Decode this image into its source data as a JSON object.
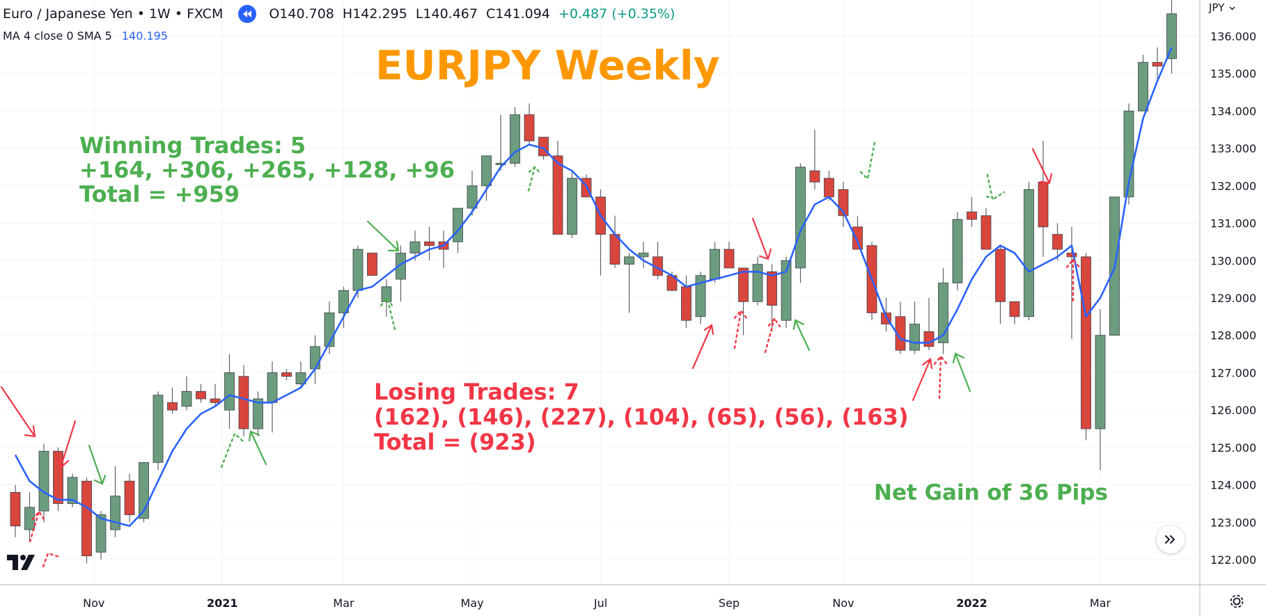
{
  "header": {
    "title": "Euro / Japanese Yen • 1W • FXCM",
    "ohlc": {
      "open": "O140.708",
      "high": "H142.295",
      "low": "L140.467",
      "close": "C141.094",
      "change": "+0.487 (+0.35%)"
    },
    "ma_label": "MA 4 close 0 SMA 5",
    "ma_value": "140.195",
    "currency_button": "JPY"
  },
  "annotations": {
    "title": "EURJPY Weekly",
    "win_line1": "Winning Trades: 5",
    "win_line2": "+164, +306, +265, +128, +96",
    "win_line3": "Total = +959",
    "lose_line1": "Losing Trades: 7",
    "lose_line2": "(162), (146), (227), (104), (65), (56), (163)",
    "lose_line3": "Total = (923)",
    "net": "Net Gain of 36 Pips"
  },
  "colors": {
    "up": "#6b9c7e",
    "down": "#d9463e",
    "ma": "#2962ff",
    "win": "#4caf50",
    "lose": "#f23645",
    "title": "#ff9800"
  },
  "icons": {
    "rewind": "rewind-icon",
    "scroll": "chevron-double-right-icon",
    "settings": "gear-icon",
    "logo": "tradingview-logo-icon"
  },
  "chart_data": {
    "type": "candlestick",
    "y_axis": {
      "min": 121.9,
      "max": 136.5,
      "side": "right",
      "ticks": [
        "122.000",
        "123.000",
        "124.000",
        "125.000",
        "126.000",
        "127.000",
        "128.000",
        "129.000",
        "130.000",
        "131.000",
        "132.000",
        "133.000",
        "134.000",
        "135.000",
        "136.000"
      ]
    },
    "x_axis": {
      "labels": [
        {
          "text": "Nov",
          "index": 5.5
        },
        {
          "text": "2021",
          "index": 14.5
        },
        {
          "text": "Mar",
          "index": 23
        },
        {
          "text": "May",
          "index": 32
        },
        {
          "text": "Jul",
          "index": 41
        },
        {
          "text": "Sep",
          "index": 50
        },
        {
          "text": "Nov",
          "index": 58
        },
        {
          "text": "2022",
          "index": 67
        },
        {
          "text": "Mar",
          "index": 76
        }
      ]
    },
    "candles": [
      {
        "o": 123.8,
        "h": 124.0,
        "l": 122.6,
        "c": 122.9
      },
      {
        "o": 122.8,
        "h": 123.8,
        "l": 122.5,
        "c": 123.4
      },
      {
        "o": 123.3,
        "h": 125.1,
        "l": 123.0,
        "c": 124.9
      },
      {
        "o": 124.9,
        "h": 125.0,
        "l": 123.3,
        "c": 123.5
      },
      {
        "o": 123.5,
        "h": 124.3,
        "l": 123.4,
        "c": 124.2
      },
      {
        "o": 124.1,
        "h": 124.2,
        "l": 121.9,
        "c": 122.1
      },
      {
        "o": 122.2,
        "h": 123.3,
        "l": 122.0,
        "c": 123.2
      },
      {
        "o": 122.8,
        "h": 124.5,
        "l": 122.6,
        "c": 123.7
      },
      {
        "o": 124.1,
        "h": 124.3,
        "l": 123.0,
        "c": 123.2
      },
      {
        "o": 123.1,
        "h": 124.6,
        "l": 123.0,
        "c": 124.6
      },
      {
        "o": 124.6,
        "h": 126.5,
        "l": 124.4,
        "c": 126.4
      },
      {
        "o": 126.2,
        "h": 126.6,
        "l": 125.9,
        "c": 126.0
      },
      {
        "o": 126.1,
        "h": 126.9,
        "l": 126.0,
        "c": 126.5
      },
      {
        "o": 126.5,
        "h": 126.7,
        "l": 126.2,
        "c": 126.3
      },
      {
        "o": 126.3,
        "h": 126.7,
        "l": 126.1,
        "c": 126.2
      },
      {
        "o": 126.0,
        "h": 127.5,
        "l": 125.5,
        "c": 127.0
      },
      {
        "o": 126.9,
        "h": 127.2,
        "l": 125.3,
        "c": 125.5
      },
      {
        "o": 125.5,
        "h": 126.5,
        "l": 125.3,
        "c": 126.3
      },
      {
        "o": 126.2,
        "h": 127.3,
        "l": 125.4,
        "c": 127.0
      },
      {
        "o": 127.0,
        "h": 127.1,
        "l": 126.8,
        "c": 126.9
      },
      {
        "o": 126.7,
        "h": 127.3,
        "l": 126.6,
        "c": 127.0
      },
      {
        "o": 127.1,
        "h": 128.0,
        "l": 126.7,
        "c": 127.7
      },
      {
        "o": 127.7,
        "h": 128.9,
        "l": 127.5,
        "c": 128.6
      },
      {
        "o": 128.6,
        "h": 129.3,
        "l": 128.2,
        "c": 129.2
      },
      {
        "o": 129.2,
        "h": 130.4,
        "l": 129.0,
        "c": 130.3
      },
      {
        "o": 130.2,
        "h": 130.2,
        "l": 129.6,
        "c": 129.6
      },
      {
        "o": 128.9,
        "h": 129.5,
        "l": 128.5,
        "c": 129.3
      },
      {
        "o": 129.5,
        "h": 130.4,
        "l": 128.9,
        "c": 130.2
      },
      {
        "o": 130.2,
        "h": 130.8,
        "l": 130.0,
        "c": 130.5
      },
      {
        "o": 130.5,
        "h": 130.9,
        "l": 130.0,
        "c": 130.4
      },
      {
        "o": 130.5,
        "h": 130.8,
        "l": 129.8,
        "c": 130.3
      },
      {
        "o": 130.5,
        "h": 131.3,
        "l": 130.2,
        "c": 131.4
      },
      {
        "o": 131.4,
        "h": 132.4,
        "l": 131.2,
        "c": 132.0
      },
      {
        "o": 132.0,
        "h": 132.7,
        "l": 131.6,
        "c": 132.8
      },
      {
        "o": 132.6,
        "h": 133.9,
        "l": 132.4,
        "c": 132.6
      },
      {
        "o": 132.6,
        "h": 134.1,
        "l": 132.5,
        "c": 133.9
      },
      {
        "o": 133.9,
        "h": 134.2,
        "l": 133.1,
        "c": 133.2
      },
      {
        "o": 133.3,
        "h": 133.3,
        "l": 132.7,
        "c": 132.8
      },
      {
        "o": 132.8,
        "h": 133.2,
        "l": 130.7,
        "c": 130.7
      },
      {
        "o": 130.7,
        "h": 132.4,
        "l": 130.6,
        "c": 132.2
      },
      {
        "o": 132.2,
        "h": 132.3,
        "l": 131.7,
        "c": 131.7
      },
      {
        "o": 131.7,
        "h": 131.9,
        "l": 129.6,
        "c": 130.7
      },
      {
        "o": 130.7,
        "h": 131.2,
        "l": 129.8,
        "c": 129.9
      },
      {
        "o": 129.9,
        "h": 130.2,
        "l": 128.6,
        "c": 130.1
      },
      {
        "o": 130.1,
        "h": 130.5,
        "l": 129.8,
        "c": 130.2
      },
      {
        "o": 130.1,
        "h": 130.5,
        "l": 129.5,
        "c": 129.6
      },
      {
        "o": 129.6,
        "h": 129.7,
        "l": 129.2,
        "c": 129.2
      },
      {
        "o": 129.3,
        "h": 129.6,
        "l": 128.2,
        "c": 128.4
      },
      {
        "o": 128.5,
        "h": 129.7,
        "l": 128.3,
        "c": 129.6
      },
      {
        "o": 129.5,
        "h": 130.5,
        "l": 129.4,
        "c": 130.3
      },
      {
        "o": 130.3,
        "h": 130.5,
        "l": 129.8,
        "c": 129.8
      },
      {
        "o": 129.8,
        "h": 129.8,
        "l": 128.0,
        "c": 128.9
      },
      {
        "o": 128.9,
        "h": 130.1,
        "l": 128.8,
        "c": 129.9
      },
      {
        "o": 129.7,
        "h": 129.9,
        "l": 128.1,
        "c": 128.8
      },
      {
        "o": 128.4,
        "h": 130.1,
        "l": 128.2,
        "c": 130.0
      },
      {
        "o": 129.8,
        "h": 132.6,
        "l": 129.4,
        "c": 132.5
      },
      {
        "o": 132.4,
        "h": 133.5,
        "l": 131.9,
        "c": 132.1
      },
      {
        "o": 132.2,
        "h": 132.4,
        "l": 131.6,
        "c": 131.7
      },
      {
        "o": 131.9,
        "h": 132.1,
        "l": 130.9,
        "c": 131.2
      },
      {
        "o": 130.9,
        "h": 131.2,
        "l": 130.3,
        "c": 130.3
      },
      {
        "o": 130.4,
        "h": 130.5,
        "l": 128.4,
        "c": 128.6
      },
      {
        "o": 128.6,
        "h": 129.0,
        "l": 128.1,
        "c": 128.3
      },
      {
        "o": 128.5,
        "h": 128.9,
        "l": 127.5,
        "c": 127.6
      },
      {
        "o": 127.6,
        "h": 128.9,
        "l": 127.5,
        "c": 128.3
      },
      {
        "o": 128.1,
        "h": 129.0,
        "l": 127.6,
        "c": 127.7
      },
      {
        "o": 127.8,
        "h": 129.8,
        "l": 127.5,
        "c": 129.4
      },
      {
        "o": 129.4,
        "h": 131.3,
        "l": 129.2,
        "c": 131.1
      },
      {
        "o": 131.3,
        "h": 131.7,
        "l": 130.9,
        "c": 131.1
      },
      {
        "o": 131.2,
        "h": 131.4,
        "l": 130.3,
        "c": 130.3
      },
      {
        "o": 130.3,
        "h": 130.4,
        "l": 128.3,
        "c": 128.9
      },
      {
        "o": 128.9,
        "h": 128.9,
        "l": 128.3,
        "c": 128.5
      },
      {
        "o": 128.5,
        "h": 132.1,
        "l": 128.4,
        "c": 131.9
      },
      {
        "o": 132.1,
        "h": 133.2,
        "l": 130.1,
        "c": 130.9
      },
      {
        "o": 130.7,
        "h": 131.0,
        "l": 130.0,
        "c": 130.3
      },
      {
        "o": 130.2,
        "h": 130.9,
        "l": 127.9,
        "c": 130.1
      },
      {
        "o": 130.1,
        "h": 130.2,
        "l": 125.2,
        "c": 125.5
      },
      {
        "o": 125.5,
        "h": 128.7,
        "l": 124.4,
        "c": 128.0
      },
      {
        "o": 128.0,
        "h": 131.7,
        "l": 128.0,
        "c": 131.7
      },
      {
        "o": 131.7,
        "h": 134.2,
        "l": 131.5,
        "c": 134.0
      },
      {
        "o": 134.0,
        "h": 135.5,
        "l": 134.0,
        "c": 135.3
      },
      {
        "o": 135.3,
        "h": 135.7,
        "l": 134.8,
        "c": 135.2
      },
      {
        "o": 135.4,
        "h": 137.0,
        "l": 135.0,
        "c": 136.6
      }
    ],
    "ma": [
      124.8,
      124.1,
      123.8,
      123.6,
      123.6,
      123.4,
      123.1,
      123.0,
      122.9,
      123.3,
      124.1,
      124.9,
      125.5,
      125.9,
      126.1,
      126.4,
      126.3,
      126.2,
      126.2,
      126.4,
      126.6,
      127.1,
      127.8,
      128.5,
      129.2,
      129.3,
      129.6,
      129.9,
      130.1,
      130.3,
      130.4,
      130.8,
      131.3,
      131.9,
      132.5,
      132.9,
      133.1,
      133.0,
      132.6,
      132.4,
      132.0,
      131.2,
      130.7,
      130.3,
      130.0,
      129.8,
      129.6,
      129.3,
      129.4,
      129.5,
      129.6,
      129.7,
      129.7,
      129.6,
      129.7,
      130.8,
      131.5,
      131.7,
      131.3,
      130.5,
      129.5,
      128.5,
      127.9,
      127.8,
      127.8,
      128.0,
      128.7,
      129.5,
      130.1,
      130.4,
      130.2,
      129.7,
      129.9,
      130.1,
      130.4,
      128.5,
      129.0,
      129.8,
      132.1,
      133.8,
      134.8,
      135.7
    ]
  }
}
